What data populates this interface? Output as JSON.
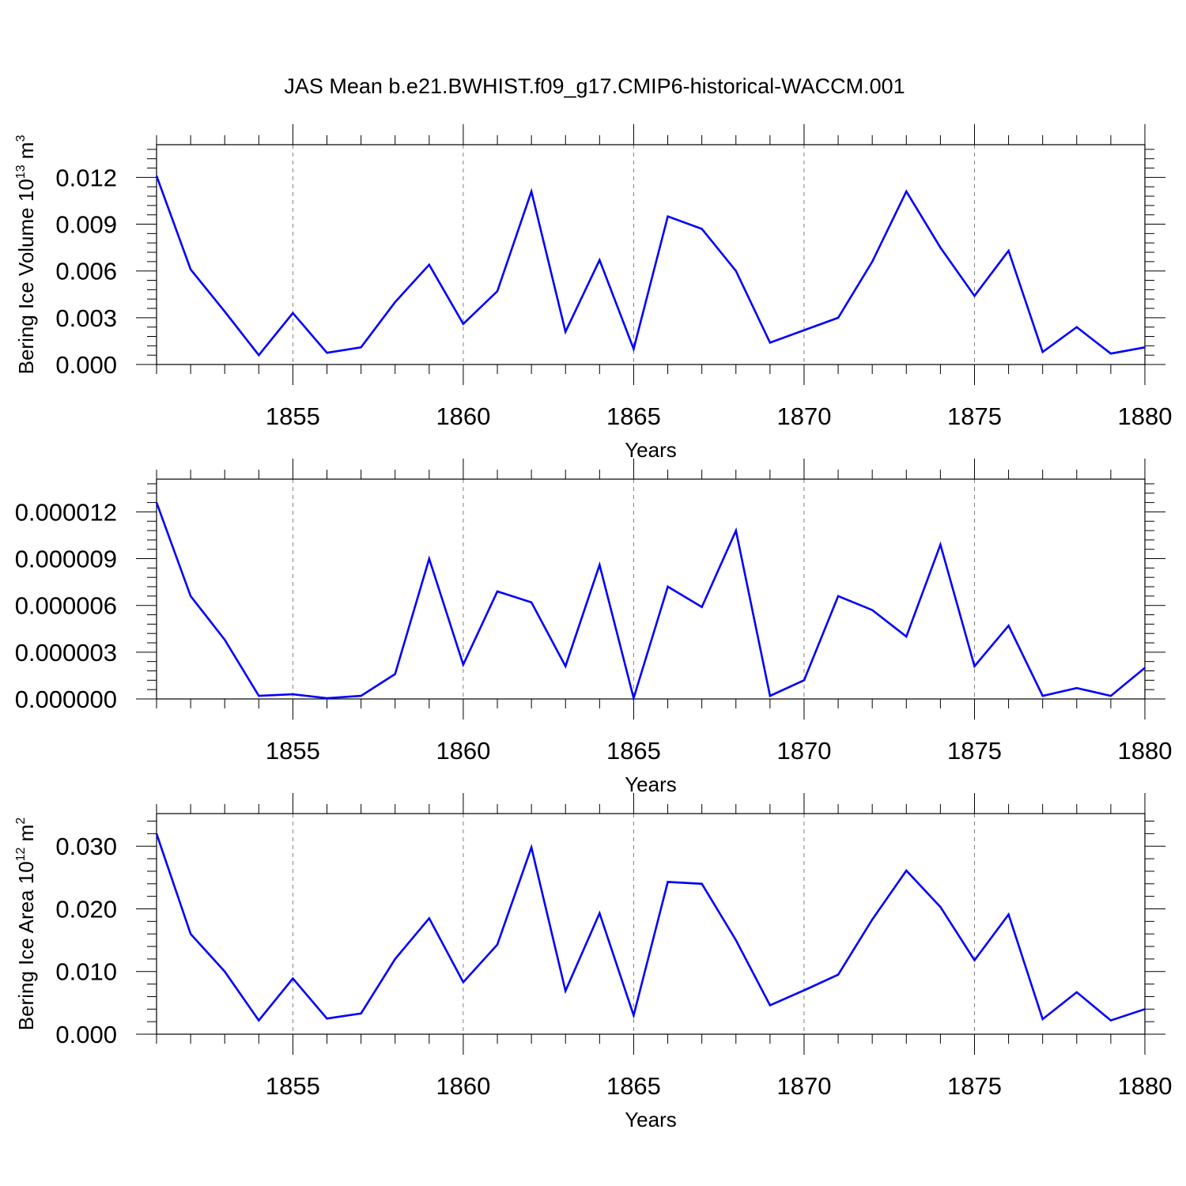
{
  "figure": {
    "title": "JAS Mean b.e21.BWHIST.f09_g17.CMIP6-historical-WACCM.001"
  },
  "colors": {
    "series": "#0000ff",
    "grid": "#7f7f7f"
  },
  "chart_data": [
    {
      "type": "line",
      "xlabel": "Years",
      "ylabel": "Bering Ice Volume 10",
      "ylabel_exp": "13",
      "ylabel_unit": " m",
      "ylabel_unit_exp": "3",
      "xlim": [
        1851,
        1880
      ],
      "ylim": [
        0,
        0.0141
      ],
      "xticks": [
        1855,
        1860,
        1865,
        1870,
        1875,
        1880
      ],
      "xtick_labels": [
        "1855",
        "1860",
        "1865",
        "1870",
        "1875",
        "1880"
      ],
      "yticks": [
        0,
        0.003,
        0.006,
        0.009,
        0.012
      ],
      "ytick_labels": [
        "0.000",
        "0.003",
        "0.006",
        "0.009",
        "0.012"
      ],
      "grid": "vertical dashed at major x ticks",
      "x": [
        1851,
        1852,
        1853,
        1854,
        1855,
        1856,
        1857,
        1858,
        1859,
        1860,
        1861,
        1862,
        1863,
        1864,
        1865,
        1866,
        1867,
        1868,
        1869,
        1870,
        1871,
        1872,
        1873,
        1874,
        1875,
        1876,
        1877,
        1878,
        1879,
        1880
      ],
      "series": [
        {
          "values": [
            0.0121,
            0.0061,
            0.0034,
            0.0006,
            0.0033,
            0.00075,
            0.0011,
            0.004,
            0.0064,
            0.0026,
            0.0047,
            0.0111,
            0.0021,
            0.0067,
            0.001,
            0.0095,
            0.0087,
            0.006,
            0.0014,
            0.0022,
            0.003,
            0.0066,
            0.0111,
            0.0075,
            0.0044,
            0.0073,
            0.0008,
            0.0024,
            0.0007,
            0.0011
          ]
        }
      ]
    },
    {
      "type": "line",
      "xlabel": "Years",
      "xlim": [
        1851,
        1880
      ],
      "ylim": [
        0,
        1.41e-05
      ],
      "xticks": [
        1855,
        1860,
        1865,
        1870,
        1875,
        1880
      ],
      "xtick_labels": [
        "1855",
        "1860",
        "1865",
        "1870",
        "1875",
        "1880"
      ],
      "yticks": [
        0,
        3e-06,
        6e-06,
        9e-06,
        1.2e-05
      ],
      "ytick_labels": [
        "0.000000",
        "0.000003",
        "0.000006",
        "0.000009",
        "0.000012"
      ],
      "grid": "vertical dashed at major x ticks",
      "x": [
        1851,
        1852,
        1853,
        1854,
        1855,
        1856,
        1857,
        1858,
        1859,
        1860,
        1861,
        1862,
        1863,
        1864,
        1865,
        1866,
        1867,
        1868,
        1869,
        1870,
        1871,
        1872,
        1873,
        1874,
        1875,
        1876,
        1877,
        1878,
        1879,
        1880
      ],
      "series": [
        {
          "values": [
            1.26e-05,
            6.6e-06,
            3.8e-06,
            2e-07,
            3e-07,
            5e-08,
            2e-07,
            1.6e-06,
            9e-06,
            2.2e-06,
            6.9e-06,
            6.2e-06,
            2.1e-06,
            8.6e-06,
            5e-08,
            7.2e-06,
            5.9e-06,
            1.08e-05,
            2e-07,
            1.2e-06,
            6.6e-06,
            5.7e-06,
            4e-06,
            9.9e-06,
            2.1e-06,
            4.7e-06,
            2e-07,
            7e-07,
            2e-07,
            2e-06
          ]
        }
      ]
    },
    {
      "type": "line",
      "xlabel": "Years",
      "ylabel": "Bering Ice Area 10",
      "ylabel_exp": "12",
      "ylabel_unit": " m",
      "ylabel_unit_exp": "2",
      "xlim": [
        1851,
        1880
      ],
      "ylim": [
        0,
        0.0352
      ],
      "xticks": [
        1855,
        1860,
        1865,
        1870,
        1875,
        1880
      ],
      "xtick_labels": [
        "1855",
        "1860",
        "1865",
        "1870",
        "1875",
        "1880"
      ],
      "yticks": [
        0,
        0.01,
        0.02,
        0.03
      ],
      "ytick_labels": [
        "0.000",
        "0.010",
        "0.020",
        "0.030"
      ],
      "grid": "vertical dashed at major x ticks",
      "x": [
        1851,
        1852,
        1853,
        1854,
        1855,
        1856,
        1857,
        1858,
        1859,
        1860,
        1861,
        1862,
        1863,
        1864,
        1865,
        1866,
        1867,
        1868,
        1869,
        1870,
        1871,
        1872,
        1873,
        1874,
        1875,
        1876,
        1877,
        1878,
        1879,
        1880
      ],
      "series": [
        {
          "values": [
            0.032,
            0.016,
            0.01,
            0.0022,
            0.0089,
            0.0025,
            0.0033,
            0.012,
            0.0185,
            0.0083,
            0.0143,
            0.0298,
            0.0069,
            0.0193,
            0.003,
            0.0243,
            0.024,
            0.015,
            0.0046,
            0.007,
            0.0095,
            0.0183,
            0.0261,
            0.0203,
            0.0118,
            0.0191,
            0.0024,
            0.0067,
            0.0022,
            0.004
          ]
        }
      ]
    }
  ]
}
